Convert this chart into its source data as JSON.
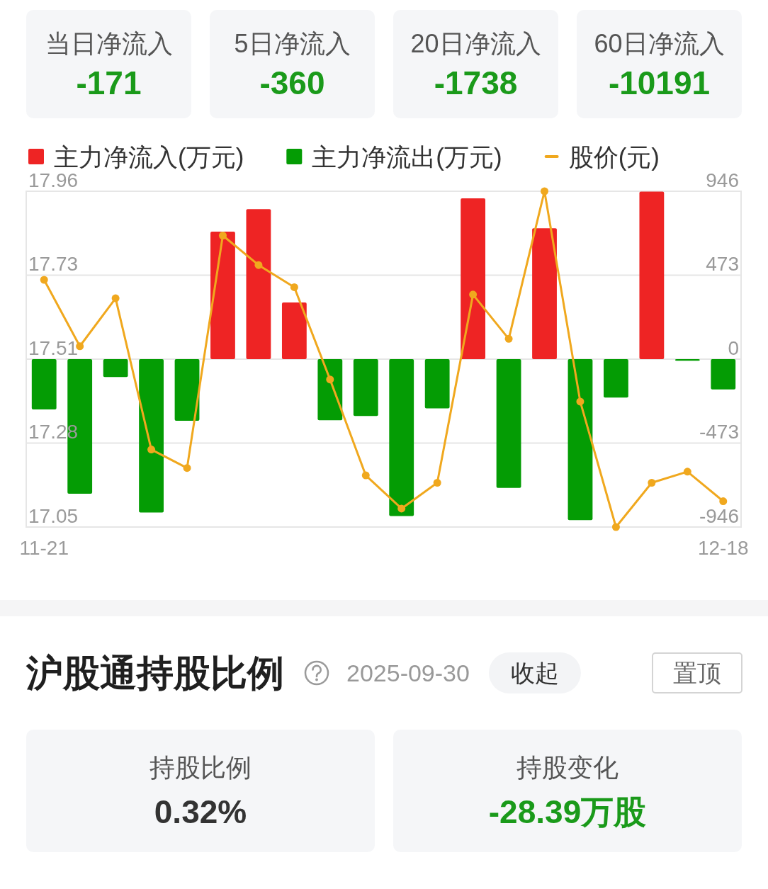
{
  "chart_data": [
    {
      "type": "other",
      "categories": [
        "当日净流入",
        "5日净流入",
        "20日净流入",
        "60日净流入"
      ],
      "value_labels": [
        "-171",
        "-360",
        "-1738",
        "-10191"
      ],
      "colors": [
        "#1a9a1a",
        "#1a9a1a",
        "#1a9a1a",
        "#1a9a1a"
      ]
    },
    {
      "type": "bar",
      "stacked": true,
      "legend": "top left",
      "grid": "y",
      "marker": "circle",
      "categories": [
        "11-21",
        null,
        null,
        null,
        null,
        null,
        null,
        null,
        null,
        null,
        null,
        null,
        null,
        null,
        null,
        null,
        null,
        null,
        null,
        "12-18"
      ],
      "series": [
        {
          "name": "主力净流入(万元)",
          "color": "#ee2424",
          "axis": "y2",
          "values": [
            null,
            null,
            null,
            null,
            null,
            718,
            845,
            319,
            null,
            null,
            null,
            null,
            906,
            null,
            737,
            null,
            null,
            944,
            null,
            null
          ]
        },
        {
          "name": "主力净流出(万元)",
          "color": "#049c04",
          "axis": "y2",
          "values": [
            -283,
            -758,
            -101,
            -864,
            -347,
            null,
            null,
            null,
            -344,
            -320,
            -884,
            -277,
            null,
            -725,
            null,
            -907,
            -217,
            null,
            -9,
            -171
          ]
        },
        {
          "name": "股价(元)",
          "type": "line",
          "color": "#f0a81e",
          "values": [
            17.72,
            17.54,
            17.67,
            17.26,
            17.21,
            17.84,
            17.76,
            17.7,
            17.45,
            17.19,
            17.1,
            17.17,
            17.68,
            17.56,
            17.96,
            17.39,
            17.05,
            17.17,
            17.2,
            17.12
          ]
        }
      ],
      "ylim": [
        17.05,
        17.96
      ],
      "yticks": [
        17.96,
        {
          "value": 17.7325,
          "label": "17.73"
        },
        {
          "value": 17.505,
          "label": "17.51"
        },
        {
          "value": 17.2775,
          "label": "17.28"
        },
        17.05
      ],
      "y2lim": [
        -946,
        946
      ],
      "y2ticks": [
        946,
        473,
        0,
        -473,
        -946
      ]
    },
    {
      "type": "other",
      "title": "沪股通持股比例",
      "subtitle": "2025-09-30",
      "annotations": [
        "收起",
        "置顶"
      ],
      "categories": [
        "持股比例",
        "持股变化"
      ],
      "value_labels": [
        "0.32%",
        "-28.39万股"
      ],
      "colors": [
        "#333333",
        "#1a9a1a"
      ]
    }
  ]
}
